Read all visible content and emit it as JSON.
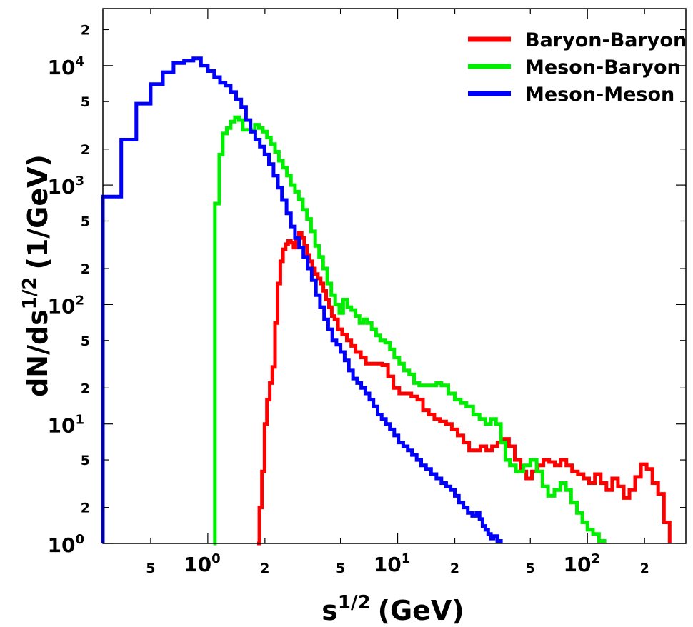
{
  "chart_data": {
    "type": "line",
    "xlabel_base": "s",
    "xlabel_sup": "1/2",
    "xlabel_unit": "(GeV)",
    "ylabel_base": "dN/ds",
    "ylabel_sup": "1/2",
    "ylabel_unit": "(1/GeV)",
    "xscale": "log",
    "yscale": "log",
    "xlim": [
      0.28,
      330
    ],
    "ylim": [
      1,
      30000
    ],
    "legend_position": "top-right",
    "grid": false,
    "x_ticks": [
      {
        "value": 0.5,
        "base": "5",
        "exp": "",
        "major": false
      },
      {
        "value": 1,
        "base": "10",
        "exp": "0",
        "major": true
      },
      {
        "value": 2,
        "base": "2",
        "exp": "",
        "major": false
      },
      {
        "value": 5,
        "base": "5",
        "exp": "",
        "major": false
      },
      {
        "value": 10,
        "base": "10",
        "exp": "1",
        "major": true
      },
      {
        "value": 20,
        "base": "2",
        "exp": "",
        "major": false
      },
      {
        "value": 50,
        "base": "5",
        "exp": "",
        "major": false
      },
      {
        "value": 100,
        "base": "10",
        "exp": "2",
        "major": true
      },
      {
        "value": 200,
        "base": "2",
        "exp": "",
        "major": false
      }
    ],
    "y_ticks": [
      {
        "value": 1,
        "base": "10",
        "exp": "0",
        "major": true
      },
      {
        "value": 2,
        "base": "2",
        "exp": "",
        "major": false
      },
      {
        "value": 5,
        "base": "5",
        "exp": "",
        "major": false
      },
      {
        "value": 10,
        "base": "10",
        "exp": "1",
        "major": true
      },
      {
        "value": 20,
        "base": "2",
        "exp": "",
        "major": false
      },
      {
        "value": 50,
        "base": "5",
        "exp": "",
        "major": false
      },
      {
        "value": 100,
        "base": "10",
        "exp": "2",
        "major": true
      },
      {
        "value": 200,
        "base": "2",
        "exp": "",
        "major": false
      },
      {
        "value": 500,
        "base": "5",
        "exp": "",
        "major": false
      },
      {
        "value": 1000,
        "base": "10",
        "exp": "3",
        "major": true
      },
      {
        "value": 2000,
        "base": "2",
        "exp": "",
        "major": false
      },
      {
        "value": 5000,
        "base": "5",
        "exp": "",
        "major": false
      },
      {
        "value": 10000,
        "base": "10",
        "exp": "4",
        "major": true
      },
      {
        "value": 20000,
        "base": "2",
        "exp": "",
        "major": false
      }
    ],
    "series": [
      {
        "name": "Baryon-Baryon",
        "color": "#ff0000",
        "points": [
          [
            1.82,
            1
          ],
          [
            1.87,
            2
          ],
          [
            1.93,
            4
          ],
          [
            1.99,
            10
          ],
          [
            2.05,
            16
          ],
          [
            2.12,
            22
          ],
          [
            2.19,
            30
          ],
          [
            2.26,
            70
          ],
          [
            2.33,
            150
          ],
          [
            2.41,
            230
          ],
          [
            2.49,
            290
          ],
          [
            2.57,
            320
          ],
          [
            2.65,
            340
          ],
          [
            2.74,
            330
          ],
          [
            2.83,
            300
          ],
          [
            2.92,
            340
          ],
          [
            3.02,
            400
          ],
          [
            3.12,
            360
          ],
          [
            3.22,
            310
          ],
          [
            3.33,
            260
          ],
          [
            3.44,
            230
          ],
          [
            3.55,
            200
          ],
          [
            3.67,
            180
          ],
          [
            3.8,
            165
          ],
          [
            3.93,
            150
          ],
          [
            4.06,
            130
          ],
          [
            4.2,
            110
          ],
          [
            4.35,
            95
          ],
          [
            4.5,
            80
          ],
          [
            4.65,
            75
          ],
          [
            4.85,
            62
          ],
          [
            5.1,
            56
          ],
          [
            5.4,
            50
          ],
          [
            5.7,
            45
          ],
          [
            6,
            40
          ],
          [
            6.4,
            36
          ],
          [
            6.8,
            32
          ],
          [
            7.3,
            32
          ],
          [
            7.8,
            32
          ],
          [
            8.3,
            31
          ],
          [
            8.9,
            25
          ],
          [
            9.5,
            20
          ],
          [
            10.2,
            18
          ],
          [
            11,
            18
          ],
          [
            11.8,
            17
          ],
          [
            12.7,
            16
          ],
          [
            13.6,
            13
          ],
          [
            14.6,
            12
          ],
          [
            15.6,
            11
          ],
          [
            16.7,
            10.5
          ],
          [
            18,
            10
          ],
          [
            19.3,
            9
          ],
          [
            20.7,
            8
          ],
          [
            22.2,
            7
          ],
          [
            23.8,
            6
          ],
          [
            25.5,
            6
          ],
          [
            27.3,
            6.5
          ],
          [
            29.3,
            6
          ],
          [
            31.4,
            6.5
          ],
          [
            33.6,
            7
          ],
          [
            36,
            7.5
          ],
          [
            38.6,
            6.5
          ],
          [
            41.4,
            5
          ],
          [
            44.4,
            4
          ],
          [
            47.6,
            3.5
          ],
          [
            51,
            4
          ],
          [
            54.7,
            4.5
          ],
          [
            58.6,
            5
          ],
          [
            62.8,
            4.8
          ],
          [
            67.3,
            4.5
          ],
          [
            72.2,
            5
          ],
          [
            77.4,
            4.5
          ],
          [
            83,
            4
          ],
          [
            89,
            3.8
          ],
          [
            95.4,
            3.5
          ],
          [
            102,
            3.2
          ],
          [
            109.5,
            3.8
          ],
          [
            117.4,
            3.2
          ],
          [
            125.9,
            2.8
          ],
          [
            135,
            3.5
          ],
          [
            144.7,
            3
          ],
          [
            155.2,
            2.4
          ],
          [
            166.4,
            2.8
          ],
          [
            178.4,
            3.6
          ],
          [
            191.3,
            4.6
          ],
          [
            205.1,
            4.2
          ],
          [
            219.9,
            3.2
          ],
          [
            235.8,
            2.6
          ],
          [
            252.8,
            1.5
          ],
          [
            271,
            1
          ]
        ]
      },
      {
        "name": "Meson-Baryon",
        "color": "#00ee00",
        "points": [
          [
            1.07,
            1
          ],
          [
            1.09,
            700
          ],
          [
            1.15,
            1800
          ],
          [
            1.2,
            2700
          ],
          [
            1.26,
            3000
          ],
          [
            1.32,
            3400
          ],
          [
            1.39,
            3700
          ],
          [
            1.46,
            3500
          ],
          [
            1.53,
            2900
          ],
          [
            1.61,
            2900
          ],
          [
            1.69,
            2800
          ],
          [
            1.77,
            3200
          ],
          [
            1.86,
            3000
          ],
          [
            1.95,
            2800
          ],
          [
            2.05,
            2500
          ],
          [
            2.15,
            2200
          ],
          [
            2.26,
            1900
          ],
          [
            2.37,
            1600
          ],
          [
            2.49,
            1400
          ],
          [
            2.61,
            1200
          ],
          [
            2.74,
            1000
          ],
          [
            2.88,
            880
          ],
          [
            3.02,
            760
          ],
          [
            3.17,
            620
          ],
          [
            3.33,
            520
          ],
          [
            3.5,
            410
          ],
          [
            3.68,
            310
          ],
          [
            3.86,
            250
          ],
          [
            4.05,
            200
          ],
          [
            4.26,
            150
          ],
          [
            4.47,
            120
          ],
          [
            4.69,
            100
          ],
          [
            4.93,
            85
          ],
          [
            5.17,
            110
          ],
          [
            5.43,
            95
          ],
          [
            5.7,
            90
          ],
          [
            6,
            80
          ],
          [
            6.3,
            70
          ],
          [
            6.6,
            75
          ],
          [
            6.9,
            70
          ],
          [
            7.3,
            62
          ],
          [
            7.7,
            55
          ],
          [
            8.1,
            50
          ],
          [
            8.6,
            48
          ],
          [
            9.1,
            42
          ],
          [
            9.6,
            36
          ],
          [
            10.2,
            32
          ],
          [
            10.8,
            28
          ],
          [
            11.5,
            26
          ],
          [
            12.2,
            22
          ],
          [
            13,
            21
          ],
          [
            14,
            21
          ],
          [
            15,
            21
          ],
          [
            16,
            22
          ],
          [
            17,
            21
          ],
          [
            18.5,
            18
          ],
          [
            20,
            16
          ],
          [
            21.5,
            15
          ],
          [
            23,
            14
          ],
          [
            25,
            12
          ],
          [
            27,
            11
          ],
          [
            29,
            10
          ],
          [
            31,
            11
          ],
          [
            33,
            10
          ],
          [
            35,
            7
          ],
          [
            37,
            5
          ],
          [
            39,
            4.5
          ],
          [
            42,
            4
          ],
          [
            46,
            4.5
          ],
          [
            50,
            5
          ],
          [
            54,
            4
          ],
          [
            58,
            3
          ],
          [
            62,
            2.5
          ],
          [
            67,
            2.8
          ],
          [
            72,
            3.2
          ],
          [
            77,
            2.8
          ],
          [
            82,
            2.2
          ],
          [
            88,
            1.8
          ],
          [
            94,
            1.5
          ],
          [
            100,
            1.3
          ],
          [
            107,
            1.2
          ],
          [
            115,
            1.05
          ],
          [
            123,
            1
          ]
        ]
      },
      {
        "name": "Meson-Meson",
        "color": "#0000ff",
        "points": [
          [
            0.28,
            0.6
          ],
          [
            0.28,
            800
          ],
          [
            0.35,
            2400
          ],
          [
            0.42,
            4800
          ],
          [
            0.5,
            7000
          ],
          [
            0.58,
            8800
          ],
          [
            0.66,
            10500
          ],
          [
            0.75,
            11000
          ],
          [
            0.84,
            11500
          ],
          [
            0.92,
            10000
          ],
          [
            1,
            9000
          ],
          [
            1.08,
            8000
          ],
          [
            1.16,
            7200
          ],
          [
            1.24,
            6800
          ],
          [
            1.32,
            6000
          ],
          [
            1.41,
            5200
          ],
          [
            1.5,
            4500
          ],
          [
            1.59,
            3500
          ],
          [
            1.68,
            2800
          ],
          [
            1.78,
            2400
          ],
          [
            1.88,
            2100
          ],
          [
            1.99,
            1800
          ],
          [
            2.1,
            1500
          ],
          [
            2.22,
            1200
          ],
          [
            2.34,
            950
          ],
          [
            2.46,
            750
          ],
          [
            2.6,
            580
          ],
          [
            2.74,
            450
          ],
          [
            2.88,
            360
          ],
          [
            3.03,
            300
          ],
          [
            3.19,
            250
          ],
          [
            3.36,
            200
          ],
          [
            3.53,
            160
          ],
          [
            3.71,
            120
          ],
          [
            3.9,
            95
          ],
          [
            4.1,
            75
          ],
          [
            4.31,
            62
          ],
          [
            4.53,
            50
          ],
          [
            4.76,
            46
          ],
          [
            5,
            40
          ],
          [
            5.26,
            34
          ],
          [
            5.53,
            28
          ],
          [
            5.82,
            24
          ],
          [
            6.12,
            22
          ],
          [
            6.43,
            20
          ],
          [
            6.76,
            18
          ],
          [
            7.1,
            16
          ],
          [
            7.46,
            14
          ],
          [
            7.84,
            12
          ],
          [
            8.24,
            11
          ],
          [
            8.67,
            10
          ],
          [
            9.1,
            9
          ],
          [
            9.6,
            8
          ],
          [
            10.1,
            7
          ],
          [
            10.7,
            6.5
          ],
          [
            11.3,
            6
          ],
          [
            11.9,
            5.5
          ],
          [
            12.6,
            5
          ],
          [
            13.3,
            4.5
          ],
          [
            14.1,
            4.2
          ],
          [
            15,
            3.8
          ],
          [
            16,
            3.5
          ],
          [
            17,
            3.2
          ],
          [
            18,
            3
          ],
          [
            19,
            2.8
          ],
          [
            20,
            2.5
          ],
          [
            21,
            2.2
          ],
          [
            22.2,
            2
          ],
          [
            23.4,
            1.8
          ],
          [
            24.7,
            1.7
          ],
          [
            26,
            1.8
          ],
          [
            27,
            1.6
          ],
          [
            28,
            1.4
          ],
          [
            29,
            1.3
          ],
          [
            30,
            1.2
          ],
          [
            31,
            1.1
          ],
          [
            32,
            1.15
          ],
          [
            33.5,
            1.05
          ],
          [
            35,
            1
          ]
        ]
      }
    ]
  }
}
